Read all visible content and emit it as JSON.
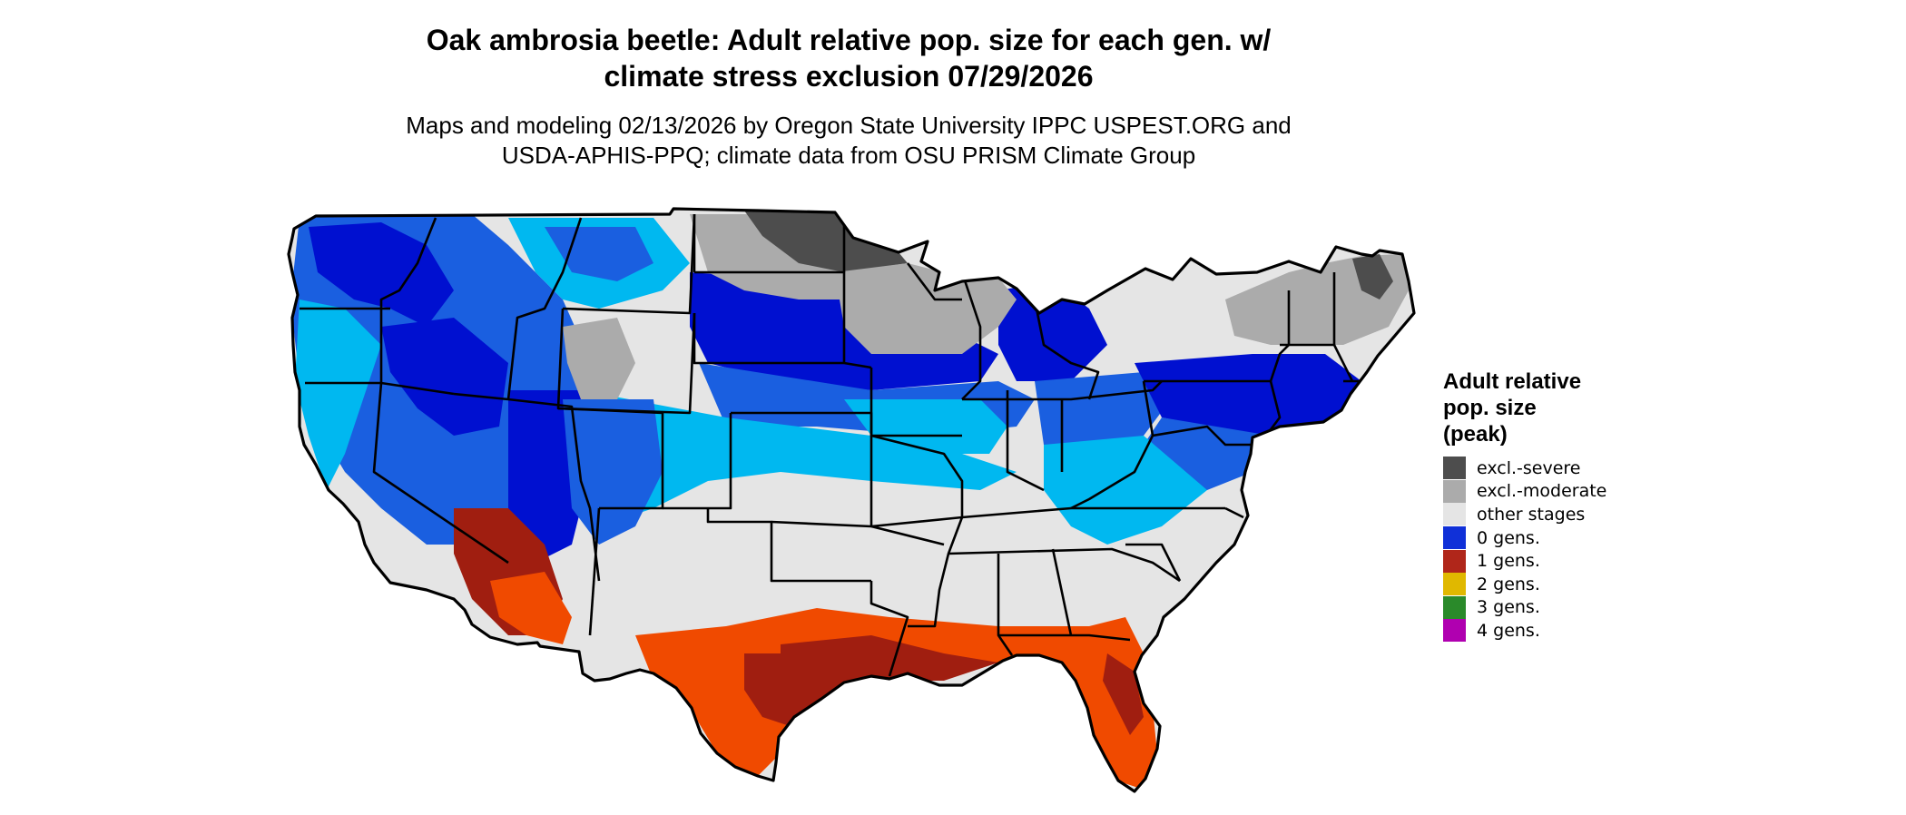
{
  "header": {
    "title_line1": "Oak ambrosia beetle: Adult relative pop. size for each gen. w/",
    "title_line2": "climate stress exclusion 07/29/2026",
    "subtitle_line1": "Maps and modeling 02/13/2026 by Oregon State University IPPC USPEST.ORG and",
    "subtitle_line2": "USDA-APHIS-PPQ; climate data from OSU PRISM Climate Group"
  },
  "legend": {
    "title_line1": "Adult relative",
    "title_line2": "pop. size",
    "title_line3": "(peak)",
    "items": [
      {
        "label": "excl.-severe",
        "color": "#4d4d4d"
      },
      {
        "label": "excl.-moderate",
        "color": "#ababab"
      },
      {
        "label": "other stages",
        "color": "#e5e5e5"
      },
      {
        "label": "0 gens.",
        "color": "#1030d8"
      },
      {
        "label": "1 gens.",
        "color": "#b0261a"
      },
      {
        "label": "2 gens.",
        "color": "#e0b800"
      },
      {
        "label": "3 gens.",
        "color": "#2a8a2a"
      },
      {
        "label": "4 gens.",
        "color": "#b000b0"
      }
    ]
  },
  "map": {
    "colors": {
      "severe": "#4d4d4d",
      "moderate": "#ababab",
      "other": "#e5e5e5",
      "light_blue": "#00b8f0",
      "mid_blue": "#1a5fe0",
      "dark_blue": "#0010d0",
      "orange": "#f04a00",
      "dark_red": "#a01e10",
      "border": "#000000"
    }
  }
}
